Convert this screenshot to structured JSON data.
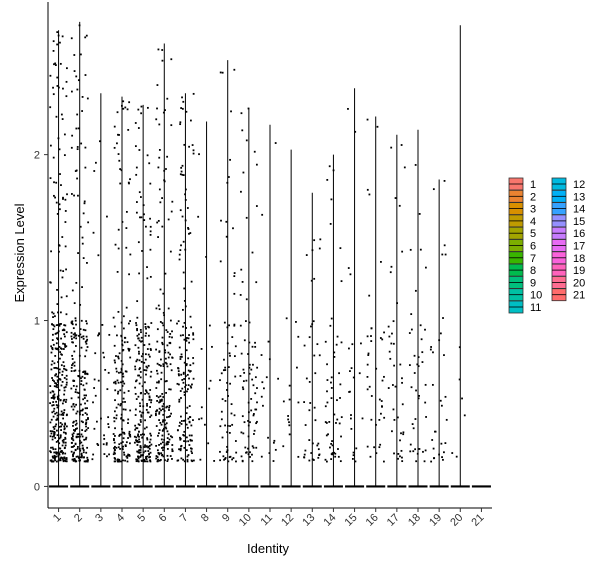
{
  "chart_data": {
    "type": "violin-jitter",
    "xlabel": "Identity",
    "ylabel": "Expression Level",
    "ylim": [
      -0.13,
      2.92
    ],
    "yticks": [
      0,
      1,
      2
    ],
    "categories": [
      "1",
      "2",
      "3",
      "4",
      "5",
      "6",
      "7",
      "8",
      "9",
      "10",
      "11",
      "12",
      "13",
      "14",
      "15",
      "16",
      "17",
      "18",
      "19",
      "20",
      "21"
    ],
    "max_values": [
      2.75,
      2.8,
      2.37,
      2.35,
      2.3,
      2.67,
      2.37,
      2.2,
      2.57,
      2.28,
      2.18,
      2.03,
      1.77,
      2.0,
      2.4,
      2.23,
      2.12,
      2.15,
      1.85,
      2.78,
      0.0
    ],
    "point_density": [
      340,
      260,
      40,
      180,
      230,
      200,
      170,
      15,
      70,
      80,
      18,
      15,
      40,
      55,
      22,
      40,
      40,
      40,
      30,
      6,
      0
    ],
    "legend": {
      "entries": [
        "1",
        "2",
        "3",
        "4",
        "5",
        "6",
        "7",
        "8",
        "9",
        "10",
        "11",
        "12",
        "13",
        "14",
        "15",
        "16",
        "17",
        "18",
        "19",
        "20",
        "21"
      ],
      "colors": [
        "#F8766D",
        "#EA8331",
        "#D89000",
        "#C09B00",
        "#A3A500",
        "#7CAE00",
        "#39B600",
        "#00BB4E",
        "#00BF7D",
        "#00C1A3",
        "#00BFC4",
        "#00BAE0",
        "#00B0F6",
        "#35A2FF",
        "#9590FF",
        "#C77CFF",
        "#E76BF3",
        "#FA62DB",
        "#FF62BC",
        "#FF6C91",
        "#FF6B6B"
      ],
      "placement": "right"
    },
    "grid": false
  }
}
